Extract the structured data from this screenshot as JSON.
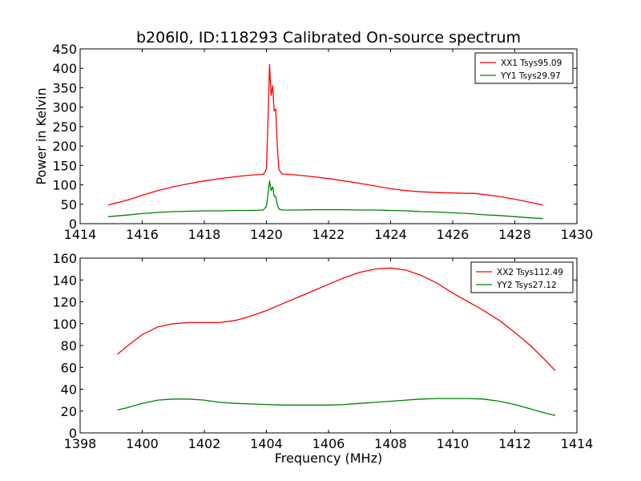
{
  "figure": {
    "title": "b206l0, ID:118293 Calibrated On-source spectrum",
    "xlabel": "Frequency (MHz)",
    "ylabel": "Power in Kelvin"
  },
  "chart_data": [
    {
      "type": "line",
      "xlabel": "",
      "ylabel": "Power in Kelvin",
      "xlim": [
        1414,
        1430
      ],
      "ylim": [
        0,
        450
      ],
      "xticks": [
        1414,
        1416,
        1418,
        1420,
        1422,
        1424,
        1426,
        1428,
        1430
      ],
      "yticks": [
        0,
        50,
        100,
        150,
        200,
        250,
        300,
        350,
        400,
        450
      ],
      "legend_position": "top-right",
      "series": [
        {
          "name": "XX1 Tsys95.09",
          "color": "#ff0000",
          "x": [
            1414.9,
            1415.5,
            1416.0,
            1416.5,
            1417.0,
            1417.5,
            1418.0,
            1418.5,
            1419.0,
            1419.5,
            1419.9,
            1420.0,
            1420.05,
            1420.1,
            1420.15,
            1420.2,
            1420.25,
            1420.3,
            1420.35,
            1420.4,
            1420.5,
            1421.0,
            1421.5,
            1422.0,
            1422.5,
            1423.0,
            1423.5,
            1424.0,
            1424.5,
            1425.0,
            1425.5,
            1426.0,
            1426.5,
            1426.7,
            1427.0,
            1427.5,
            1428.0,
            1428.5,
            1428.9
          ],
          "values": [
            48,
            60,
            73,
            85,
            95,
            103,
            110,
            116,
            121,
            125,
            127,
            140,
            260,
            410,
            330,
            355,
            290,
            295,
            200,
            140,
            128,
            125,
            121,
            116,
            110,
            104,
            97,
            90,
            85,
            82,
            80,
            79,
            78,
            78,
            75,
            70,
            63,
            55,
            48
          ]
        },
        {
          "name": "YY1 Tsys29.97",
          "color": "#008000",
          "x": [
            1414.9,
            1415.5,
            1416.0,
            1416.5,
            1417.0,
            1417.5,
            1418.0,
            1418.5,
            1419.0,
            1419.5,
            1419.9,
            1420.0,
            1420.05,
            1420.1,
            1420.15,
            1420.2,
            1420.25,
            1420.3,
            1420.35,
            1420.4,
            1420.5,
            1421.0,
            1421.5,
            1422.0,
            1422.5,
            1423.0,
            1423.5,
            1424.0,
            1424.5,
            1425.0,
            1425.5,
            1426.0,
            1426.5,
            1427.0,
            1427.5,
            1428.0,
            1428.5,
            1428.9
          ],
          "values": [
            18,
            22,
            26,
            29,
            31,
            32,
            33,
            33,
            34,
            34,
            35,
            45,
            75,
            110,
            85,
            95,
            70,
            70,
            50,
            38,
            35,
            35,
            36,
            36,
            36,
            35,
            35,
            34,
            33,
            31,
            30,
            28,
            26,
            23,
            21,
            18,
            15,
            13
          ]
        }
      ]
    },
    {
      "type": "line",
      "xlabel": "Frequency (MHz)",
      "ylabel": "",
      "xlim": [
        1398,
        1414
      ],
      "ylim": [
        0,
        160
      ],
      "xticks": [
        1398,
        1400,
        1402,
        1404,
        1406,
        1408,
        1410,
        1412,
        1414
      ],
      "yticks": [
        0,
        20,
        40,
        60,
        80,
        100,
        120,
        140,
        160
      ],
      "legend_position": "top-right",
      "series": [
        {
          "name": "XX2 Tsys112.49",
          "color": "#ff0000",
          "x": [
            1399.2,
            1399.5,
            1400.0,
            1400.5,
            1401.0,
            1401.5,
            1402.0,
            1402.5,
            1403.0,
            1403.5,
            1404.0,
            1404.5,
            1405.0,
            1405.5,
            1406.0,
            1406.5,
            1407.0,
            1407.5,
            1408.0,
            1408.5,
            1409.0,
            1409.5,
            1410.0,
            1410.5,
            1411.0,
            1411.5,
            1412.0,
            1412.5,
            1413.0,
            1413.3
          ],
          "values": [
            72,
            79,
            90,
            97,
            100,
            101,
            101,
            101,
            103,
            107,
            112,
            118,
            124,
            130,
            136,
            142,
            147,
            150,
            151,
            149,
            144,
            137,
            128,
            120,
            112,
            103,
            92,
            80,
            66,
            57
          ]
        },
        {
          "name": "YY2 Tsys27.12",
          "color": "#008000",
          "x": [
            1399.2,
            1399.5,
            1400.0,
            1400.5,
            1401.0,
            1401.5,
            1402.0,
            1402.5,
            1403.0,
            1403.5,
            1404.0,
            1404.5,
            1405.0,
            1405.5,
            1406.0,
            1406.5,
            1407.0,
            1407.5,
            1408.0,
            1408.5,
            1409.0,
            1409.5,
            1410.0,
            1410.5,
            1411.0,
            1411.5,
            1412.0,
            1412.5,
            1413.0,
            1413.3
          ],
          "values": [
            21,
            23,
            27,
            30,
            31,
            31,
            30,
            28,
            27,
            26.5,
            26,
            25.5,
            25.5,
            25.5,
            25.5,
            26,
            27,
            28,
            29,
            30,
            31,
            31.5,
            31.5,
            31.5,
            31,
            29,
            26,
            22,
            18,
            16
          ]
        }
      ]
    }
  ]
}
